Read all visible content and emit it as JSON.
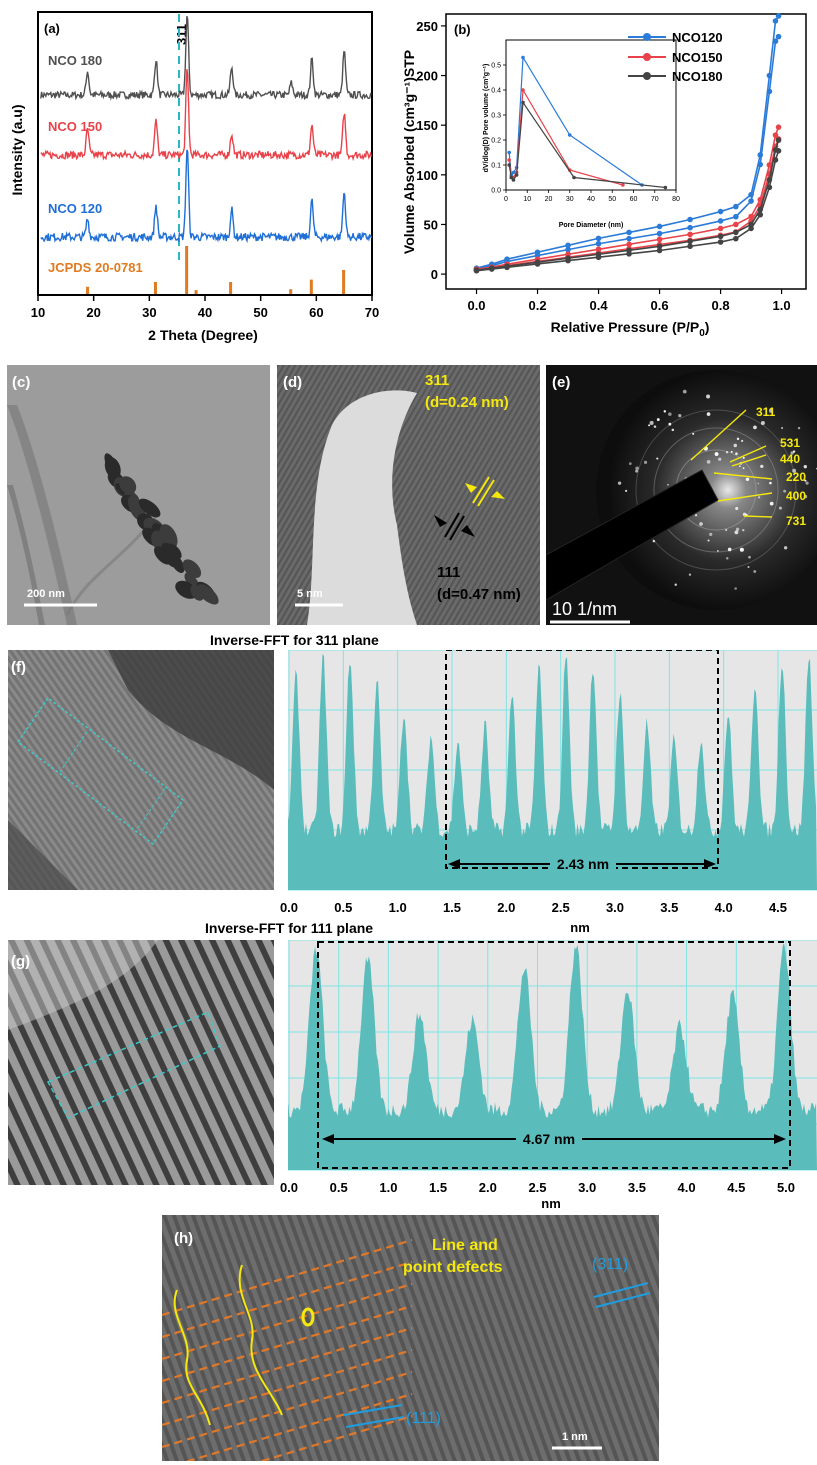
{
  "panel_a": {
    "label": "(a)",
    "peak_label": "311",
    "series_labels": [
      "NCO 180",
      "NCO 150",
      "NCO 120",
      "JCPDS 20-0781"
    ],
    "series_colors": [
      "#505050",
      "#e8434a",
      "#1f6fd6",
      "#e07b20"
    ],
    "xlabel": "2 Theta (Degree)",
    "ylabel": "Intensity (a.u)",
    "xticks": [
      "10",
      "20",
      "30",
      "40",
      "50",
      "60",
      "70"
    ]
  },
  "panel_b": {
    "label": "(b)",
    "xlabel": "Relative Pressure (P/P",
    "xlabel_sub": "0",
    "xlabel_end": ")",
    "ylabel": "Volume Absorbed (cm³g⁻¹)STP",
    "xticks": [
      "0.0",
      "0.2",
      "0.4",
      "0.6",
      "0.8",
      "1.0"
    ],
    "yticks": [
      "0",
      "50",
      "100",
      "150",
      "200",
      "250"
    ],
    "legend": [
      "NCO120",
      "NCO150",
      "NCO180"
    ],
    "inset_xlabel": "Pore Diameter (nm)",
    "inset_ylabel": "dV/dlog(D) Pore volume (cm³g⁻¹)",
    "inset_xticks": [
      "0",
      "10",
      "20",
      "30",
      "40",
      "50",
      "60",
      "70",
      "80"
    ],
    "inset_yticks": [
      "0.0",
      "0.1",
      "0.2",
      "0.3",
      "0.4",
      "0.5"
    ]
  },
  "panel_c": {
    "label": "(c)",
    "scale": "200 nm"
  },
  "panel_d": {
    "label": "(d)",
    "scale": "5 nm",
    "plane_a": "311",
    "spacing_a": "(d=0.24 nm)",
    "plane_b": "111",
    "spacing_b": "(d=0.47 nm)"
  },
  "panel_e": {
    "label": "(e)",
    "scale": "10 1/nm",
    "rings": [
      "311",
      "531",
      "440",
      "220",
      "400",
      "731"
    ]
  },
  "panel_f": {
    "label": "(f)",
    "title": "Inverse-FFT for 311 plane",
    "distance": "2.43 nm",
    "xlabel": "nm",
    "xticks": [
      "0.0",
      "0.5",
      "1.0",
      "1.5",
      "2.0",
      "2.5",
      "3.0",
      "3.5",
      "4.0",
      "4.5"
    ]
  },
  "panel_g": {
    "label": "(g)",
    "title": "Inverse-FFT for 111 plane",
    "distance": "4.67 nm",
    "xlabel": "nm",
    "xticks": [
      "0.0",
      "0.5",
      "1.0",
      "1.5",
      "2.0",
      "2.5",
      "3.0",
      "3.5",
      "4.0",
      "4.5",
      "5.0"
    ]
  },
  "panel_h": {
    "label": "(h)",
    "defects": "Line and\npoint defects",
    "defects_l1": "Line and",
    "defects_l2": "point defects",
    "plane_a": "(311)",
    "plane_b": "(111)",
    "scale": "1 nm"
  },
  "chart_data": [
    {
      "type": "line",
      "title": "",
      "xlabel": "2 Theta (Degree)",
      "ylabel": "Intensity (a.u)",
      "xlim": [
        10,
        70
      ],
      "series": [
        {
          "name": "NCO 180",
          "x": [
            18.9,
            31.2,
            36.8,
            44.8,
            55.5,
            59.2,
            65.0
          ],
          "values": [
            0.3,
            0.45,
            1.0,
            0.35,
            0.15,
            0.45,
            0.55
          ]
        },
        {
          "name": "NCO 150",
          "x": [
            18.9,
            31.2,
            36.8,
            44.8,
            59.2,
            65.0
          ],
          "values": [
            0.3,
            0.4,
            1.0,
            0.25,
            0.35,
            0.5
          ]
        },
        {
          "name": "NCO 120",
          "x": [
            18.9,
            31.2,
            36.8,
            44.8,
            59.2,
            65.0
          ],
          "values": [
            0.2,
            0.35,
            1.0,
            0.3,
            0.4,
            0.5
          ]
        },
        {
          "name": "JCPDS 20-0781",
          "x": [
            18.9,
            31.1,
            36.7,
            38.4,
            44.6,
            55.4,
            59.1,
            64.9
          ],
          "values": [
            0.15,
            0.25,
            1.0,
            0.08,
            0.25,
            0.1,
            0.3,
            0.5
          ]
        }
      ]
    },
    {
      "type": "line",
      "title": "",
      "xlabel": "Relative Pressure (P/P0)",
      "ylabel": "Volume Absorbed (cm3g-1)STP",
      "xlim": [
        -0.1,
        1.08
      ],
      "ylim": [
        -15,
        262
      ],
      "series": [
        {
          "name": "NCO120",
          "x": [
            0.0,
            0.05,
            0.1,
            0.2,
            0.3,
            0.4,
            0.5,
            0.6,
            0.7,
            0.8,
            0.85,
            0.9,
            0.93,
            0.96,
            0.98,
            0.99
          ],
          "values": [
            6,
            10,
            15,
            22,
            29,
            36,
            42,
            48,
            55,
            63,
            68,
            80,
            120,
            200,
            255,
            260
          ]
        },
        {
          "name": "NCO150",
          "x": [
            0.0,
            0.05,
            0.1,
            0.2,
            0.3,
            0.4,
            0.5,
            0.6,
            0.7,
            0.8,
            0.85,
            0.9,
            0.93,
            0.96,
            0.98,
            0.99
          ],
          "values": [
            5,
            7,
            10,
            15,
            20,
            25,
            30,
            35,
            40,
            46,
            50,
            58,
            75,
            110,
            140,
            148
          ]
        },
        {
          "name": "NCO180",
          "x": [
            0.0,
            0.05,
            0.1,
            0.2,
            0.3,
            0.4,
            0.5,
            0.6,
            0.7,
            0.8,
            0.85,
            0.9,
            0.93,
            0.96,
            0.98,
            0.99
          ],
          "values": [
            4,
            6,
            8,
            12,
            16,
            20,
            24,
            28,
            33,
            38,
            42,
            50,
            65,
            95,
            125,
            135
          ]
        }
      ]
    },
    {
      "type": "line",
      "title": "",
      "xlabel": "Pore Diameter (nm)",
      "ylabel": "dV/dlog(D) Pore volume (cm3g-1)",
      "xlim": [
        0,
        80
      ],
      "ylim": [
        0,
        0.6
      ],
      "series": [
        {
          "name": "NCO120",
          "x": [
            1.5,
            2.5,
            3.5,
            5,
            8,
            30,
            64
          ],
          "values": [
            0.15,
            0.06,
            0.07,
            0.09,
            0.53,
            0.22,
            0.02
          ]
        },
        {
          "name": "NCO150",
          "x": [
            1.5,
            2.5,
            3.5,
            5,
            8,
            30,
            55
          ],
          "values": [
            0.12,
            0.05,
            0.05,
            0.07,
            0.4,
            0.08,
            0.02
          ]
        },
        {
          "name": "NCO180",
          "x": [
            1.5,
            2.5,
            3.5,
            5,
            8,
            32,
            75
          ],
          "values": [
            0.1,
            0.05,
            0.04,
            0.06,
            0.35,
            0.05,
            0.01
          ]
        }
      ]
    }
  ]
}
